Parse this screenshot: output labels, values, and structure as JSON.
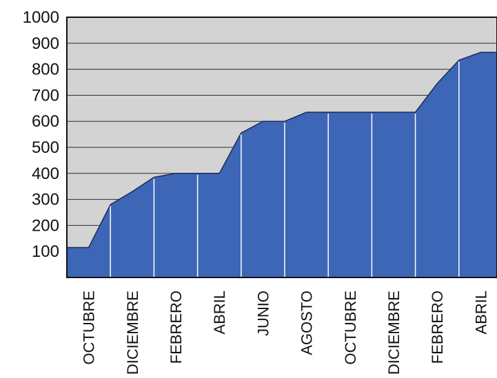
{
  "chart_data": {
    "type": "area",
    "title": "",
    "xlabel": "",
    "ylabel": "",
    "ylim": [
      0,
      1000
    ],
    "grid": true,
    "y_ticks": [
      "100",
      "200",
      "300",
      "400",
      "500",
      "600",
      "700",
      "800",
      "900",
      "1000"
    ],
    "x_tick_labels": [
      "OCTUBRE",
      "DICIEMBRE",
      "FEBRERO",
      "ABRIL",
      "JUNIO",
      "AGOSTO",
      "OCTUBRE",
      "DICIEMBRE",
      "FEBRERO",
      "ABRIL"
    ],
    "series": [
      {
        "x": [
          0,
          0.5,
          1,
          1.5,
          2,
          2.5,
          3,
          3.5,
          4,
          4.5,
          5,
          5.5,
          6,
          6.5,
          7,
          7.5,
          8,
          8.5,
          9,
          9.5
        ],
        "values": [
          115,
          115,
          280,
          330,
          385,
          400,
          400,
          400,
          555,
          600,
          600,
          635,
          635,
          635,
          635,
          635,
          635,
          745,
          835,
          865
        ]
      }
    ],
    "colors": {
      "fill": "#3d66b6",
      "plot_background": "#d3d3d3",
      "gridline": "#2a2a2a",
      "month_divider": "#ffffff",
      "axis": "#111111"
    }
  }
}
